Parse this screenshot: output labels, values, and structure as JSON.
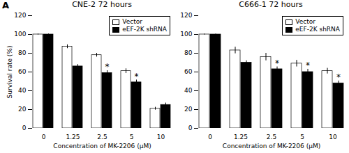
{
  "title": "A",
  "chart_data": [
    {
      "type": "bar",
      "title": "CNE-2 72 hours",
      "xlabel": "Concentration of MK-2206 (μM)",
      "ylabel": "Survival rate (%)",
      "categories": [
        "0",
        "1.25",
        "2.5",
        "5",
        "10"
      ],
      "series": [
        {
          "name": "Vector",
          "color": "white",
          "values": [
            100,
            87,
            78,
            61,
            21
          ],
          "errors": [
            0.5,
            2.0,
            2.0,
            2.5,
            1.5
          ]
        },
        {
          "name": "eEF-2K shRNA",
          "color": "black",
          "values": [
            100,
            66,
            59,
            49,
            25
          ],
          "errors": [
            0.5,
            2.0,
            2.5,
            2.5,
            2.0
          ]
        }
      ],
      "annotations": [
        {
          "text": "*",
          "category": "2.5",
          "series": "eEF-2K shRNA"
        },
        {
          "text": "*",
          "category": "5",
          "series": "eEF-2K shRNA"
        }
      ],
      "ylim": [
        0,
        120
      ],
      "yticks": [
        0,
        20,
        40,
        60,
        80,
        100,
        120
      ],
      "grid": false,
      "legend": "upper right"
    },
    {
      "type": "bar",
      "title": "C666-1 72 hours",
      "xlabel": "Concentration of MK-2206 (μM)",
      "categories": [
        "0",
        "1.25",
        "2.5",
        "5",
        "10"
      ],
      "series": [
        {
          "name": "Vector",
          "color": "white",
          "values": [
            100,
            83,
            76,
            69,
            61
          ],
          "errors": [
            0.5,
            3.5,
            4.0,
            3.5,
            3.0
          ]
        },
        {
          "name": "eEF-2K shRNA",
          "color": "black",
          "values": [
            100,
            70,
            63,
            60,
            48
          ],
          "errors": [
            0.5,
            2.0,
            2.5,
            3.0,
            2.5
          ]
        }
      ],
      "annotations": [
        {
          "text": "*",
          "category": "2.5",
          "series": "eEF-2K shRNA"
        },
        {
          "text": "*",
          "category": "5",
          "series": "eEF-2K shRNA"
        },
        {
          "text": "*",
          "category": "10",
          "series": "eEF-2K shRNA"
        }
      ],
      "ylim": [
        0,
        120
      ],
      "yticks": [
        0,
        20,
        40,
        60,
        80,
        100,
        120
      ],
      "grid": false,
      "legend": "upper right"
    }
  ]
}
